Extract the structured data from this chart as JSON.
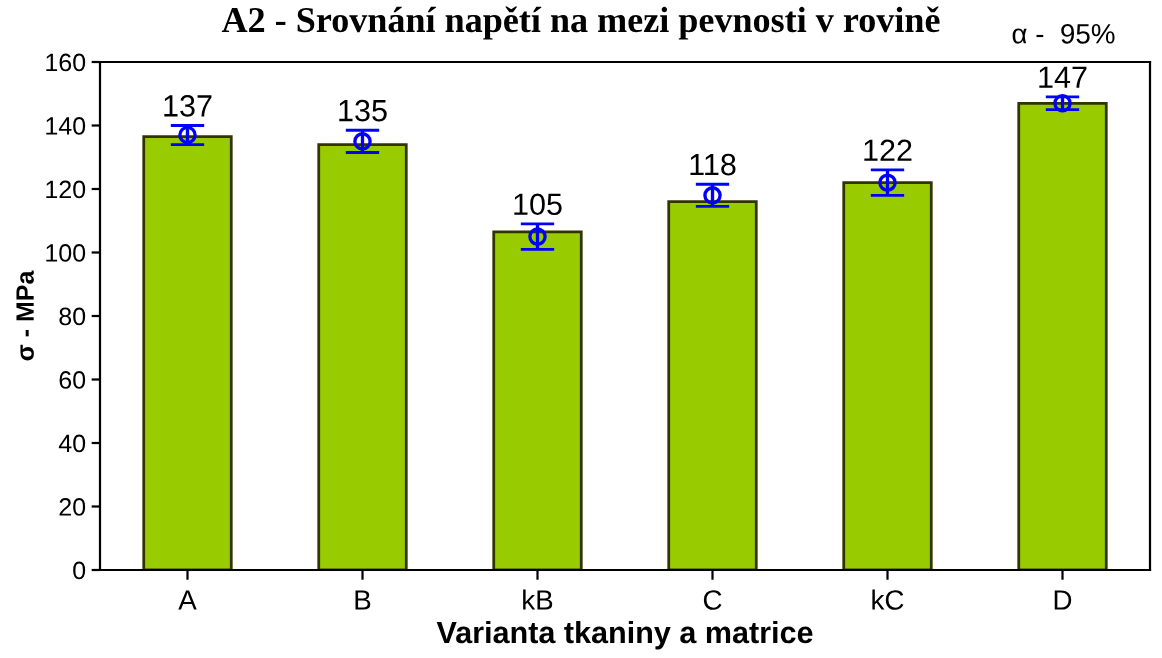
{
  "chart_data": {
    "type": "bar",
    "title": "A2 - Srovnání napětí na mezi pevnosti v rovině",
    "xlabel": "Varianta tkaniny a matrice",
    "ylabel": "σ - MPa",
    "annotations": [
      "α -  95%"
    ],
    "categories": [
      "A",
      "B",
      "kB",
      "C",
      "kC",
      "D"
    ],
    "series": [
      {
        "color": "#99cc00",
        "values": [
          136.5,
          134,
          106.5,
          116,
          122,
          147
        ]
      },
      {
        "type": "scatter",
        "color": "#0000ff",
        "x": [
          "A",
          "B",
          "kB",
          "C",
          "kC",
          "D"
        ],
        "values": [
          137,
          135,
          105,
          118,
          122,
          147
        ],
        "errors": [
          3,
          3.5,
          4,
          3.5,
          4,
          2
        ],
        "value_labels": [
          "137",
          "135",
          "105",
          "118",
          "122",
          "147"
        ],
        "marker": "circle"
      }
    ],
    "ylim": [
      0,
      160
    ],
    "yticks": [
      0,
      20,
      40,
      60,
      80,
      100,
      120,
      140,
      160
    ],
    "grid": false,
    "legend": false
  }
}
